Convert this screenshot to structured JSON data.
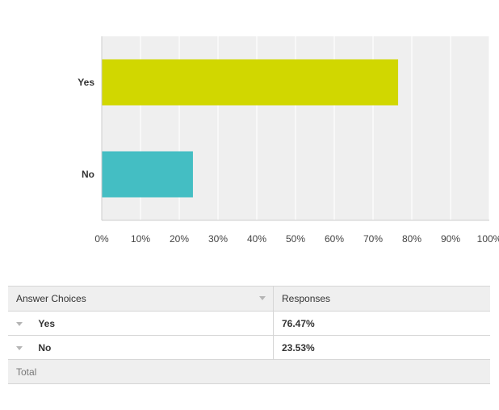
{
  "chart_data": {
    "type": "bar",
    "orientation": "horizontal",
    "categories": [
      "Yes",
      "No"
    ],
    "values": [
      76.47,
      23.53
    ],
    "colors": [
      "#d1d700",
      "#44bec3"
    ],
    "xlim": [
      0,
      100
    ],
    "xticks": [
      "0%",
      "10%",
      "20%",
      "30%",
      "40%",
      "50%",
      "60%",
      "70%",
      "80%",
      "90%",
      "100%"
    ],
    "grid": true,
    "title": "",
    "xlabel": "",
    "ylabel": ""
  },
  "table": {
    "headers": {
      "choices": "Answer Choices",
      "responses": "Responses"
    },
    "rows": [
      {
        "choice": "Yes",
        "response": "76.47%"
      },
      {
        "choice": "No",
        "response": "23.53%"
      }
    ],
    "total_label": "Total"
  }
}
